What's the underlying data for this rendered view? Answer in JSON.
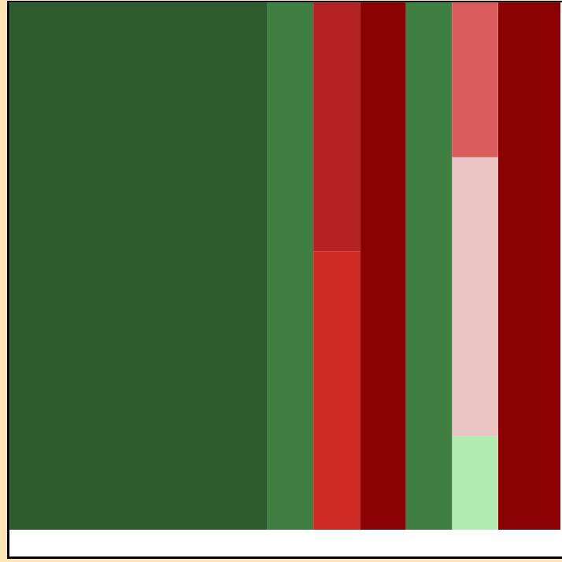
{
  "chart_data": {
    "type": "treemap",
    "title": "",
    "columns": [
      {
        "cells": [
          {
            "value": 100,
            "color": "#2E5B2E"
          }
        ]
      },
      {
        "cells": [
          {
            "value": 100,
            "color": "#3F7F42"
          }
        ]
      },
      {
        "cells": [
          {
            "value": 47.2,
            "color": "#B22222"
          },
          {
            "value": 52.8,
            "color": "#CD2B24"
          }
        ]
      },
      {
        "cells": [
          {
            "value": 100,
            "color": "#8B0000"
          }
        ]
      },
      {
        "cells": [
          {
            "value": 100,
            "color": "#3F7F42"
          }
        ]
      },
      {
        "cells": [
          {
            "value": 29.4,
            "color": "#D95B5B"
          },
          {
            "value": 52.9,
            "color": "#EAC3C3"
          },
          {
            "value": 17.7,
            "color": "#B2EBB0"
          }
        ]
      },
      {
        "cells": [
          {
            "value": 100,
            "color": "#8B0000"
          }
        ]
      }
    ],
    "column_weights": [
      331,
      59,
      60,
      59,
      59,
      59,
      80
    ]
  }
}
